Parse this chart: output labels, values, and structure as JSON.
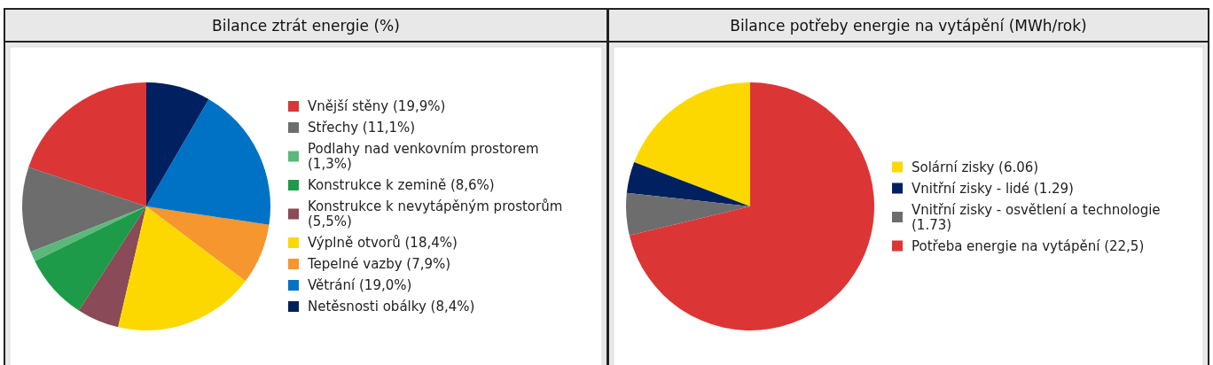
{
  "chart_data": [
    {
      "type": "pie",
      "title": "Bilance ztrát energie (%)",
      "legend": "right",
      "categories": [
        "Vnější stěny (19,9%)",
        "Střechy (11,1%)",
        "Podlahy nad venkovním prostorem (1,3%)",
        "Konstrukce k zemině (8,6%)",
        "Konstrukce k nevytápěným prostorům (5,5%)",
        "Výplně otvorů (18,4%)",
        "Tepelné vazby (7,9%)",
        "Větrání (19,0%)",
        "Netěsnosti obálky (8,4%)"
      ],
      "values": [
        19.9,
        11.1,
        1.3,
        8.6,
        5.5,
        18.4,
        7.9,
        19.0,
        8.4
      ],
      "colors": [
        "#dc3535",
        "#6d6d6d",
        "#5cb87a",
        "#1e9b48",
        "#8a4a57",
        "#fcd800",
        "#f5962f",
        "#0072c6",
        "#002060"
      ]
    },
    {
      "type": "pie",
      "title": "Bilance potřeby energie na vytápění (MWh/rok)",
      "legend": "right",
      "categories": [
        "Solární zisky (6.06)",
        "Vnitřní zisky - lidé (1.29)",
        "Vnitřní zisky - osvětlení a technologie (1.73)",
        "Potřeba energie na vytápění (22,5)"
      ],
      "values": [
        6.06,
        1.29,
        1.73,
        22.5
      ],
      "colors": [
        "#fcd800",
        "#002060",
        "#6d6d6d",
        "#dc3535"
      ]
    }
  ]
}
